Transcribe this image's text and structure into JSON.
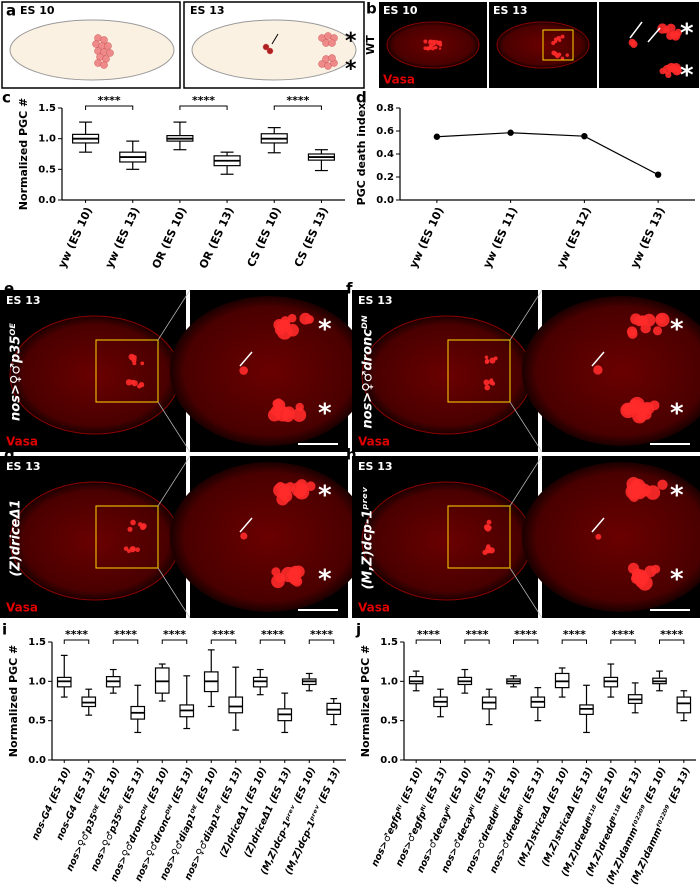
{
  "panels": {
    "a": {
      "label": "a",
      "stages": [
        "ES 10",
        "ES 13"
      ],
      "asterisk": "*"
    },
    "b": {
      "label": "b",
      "genotype": "WT",
      "stages": [
        "ES 10",
        "ES 13"
      ],
      "stain": "Vasa",
      "asterisk": "*"
    },
    "e": {
      "label": "e",
      "stage": "ES 13",
      "genotype": "nos>♀♂p35ᴼᴱ",
      "stain": "Vasa",
      "asterisk": "*"
    },
    "f": {
      "label": "f",
      "stage": "ES 13",
      "genotype": "nos>♀♂droncᴰᴺ",
      "stain": "Vasa",
      "asterisk": "*"
    },
    "g": {
      "label": "g",
      "stage": "ES 13",
      "genotype": "(Z)driceΔ1",
      "stain": "Vasa",
      "asterisk": "*"
    },
    "h": {
      "label": "h",
      "stage": "ES 13",
      "genotype": "(M,Z)dcp-1ᵖʳᵉᵛ",
      "stain": "Vasa",
      "asterisk": "*"
    }
  },
  "chart_data": [
    {
      "type": "box",
      "panel": "c",
      "y_label": "Normalized PGC #",
      "categories": [
        "yw (ES 10)",
        "yw (ES 13)",
        "OR (ES 10)",
        "OR (ES 13)",
        "CS (ES 10)",
        "CS (ES 13)"
      ],
      "boxes": [
        {
          "min": 0.78,
          "q1": 0.93,
          "median": 1.0,
          "q3": 1.07,
          "max": 1.27
        },
        {
          "min": 0.5,
          "q1": 0.62,
          "median": 0.7,
          "q3": 0.78,
          "max": 0.96
        },
        {
          "min": 0.82,
          "q1": 0.96,
          "median": 1.0,
          "q3": 1.05,
          "max": 1.27
        },
        {
          "min": 0.42,
          "q1": 0.56,
          "median": 0.64,
          "q3": 0.72,
          "max": 0.78
        },
        {
          "min": 0.77,
          "q1": 0.93,
          "median": 1.0,
          "q3": 1.08,
          "max": 1.18
        },
        {
          "min": 0.48,
          "q1": 0.65,
          "median": 0.7,
          "q3": 0.75,
          "max": 0.82
        }
      ],
      "significance": [
        "****",
        "****",
        "****"
      ],
      "ylim": [
        0,
        1.5
      ],
      "yticks": [
        {
          "value": 0,
          "label": "0.0"
        },
        0.5,
        {
          "value": 1,
          "label": "1.0"
        },
        1.5
      ]
    },
    {
      "type": "line",
      "panel": "d",
      "y_label": "PGC death index",
      "categories": [
        "yw (ES 10)",
        "yw (ES 11)",
        "yw (ES 12)",
        "yw (ES 13)"
      ],
      "values": [
        0.55,
        0.585,
        0.555,
        0.22
      ],
      "color": "#000000",
      "ylim": [
        0,
        0.8
      ],
      "yticks": [
        {
          "value": 0,
          "label": "0.0"
        },
        0.2,
        0.4,
        0.6,
        0.8
      ]
    },
    {
      "type": "box",
      "panel": "i",
      "y_label": "Normalized PGC #",
      "categories": [
        "nos-G4 (ES 10)",
        "nos-G4 (ES 13)",
        "nos>♀♂p35ᴼᴱ (ES 10)",
        "nos>♀♂p35ᴼᴱ (ES 13)",
        "nos>♀♂droncᴰᴺ (ES 10)",
        "nos>♀♂droncᴰᴺ (ES 13)",
        "nos>♀♂diap1ᴼᴱ (ES 10)",
        "nos>♀♂diap1ᴼᴱ (ES 13)",
        "(Z)driceΔ1 (ES 10)",
        "(Z)driceΔ1 (ES 13)",
        "(M,Z)dcp-1ᵖʳᵉᵛ (ES 10)",
        "(M,Z)dcp-1ᵖʳᵉᵛ (ES 13)"
      ],
      "boxes": [
        {
          "min": 0.8,
          "q1": 0.93,
          "median": 1.0,
          "q3": 1.05,
          "max": 1.33
        },
        {
          "min": 0.57,
          "q1": 0.68,
          "median": 0.73,
          "q3": 0.8,
          "max": 0.9
        },
        {
          "min": 0.85,
          "q1": 0.93,
          "median": 1.0,
          "q3": 1.06,
          "max": 1.15
        },
        {
          "min": 0.35,
          "q1": 0.52,
          "median": 0.6,
          "q3": 0.68,
          "max": 0.95
        },
        {
          "min": 0.75,
          "q1": 0.85,
          "median": 1.0,
          "q3": 1.17,
          "max": 1.22
        },
        {
          "min": 0.4,
          "q1": 0.55,
          "median": 0.63,
          "q3": 0.7,
          "max": 1.07
        },
        {
          "min": 0.68,
          "q1": 0.87,
          "median": 1.0,
          "q3": 1.12,
          "max": 1.4
        },
        {
          "min": 0.38,
          "q1": 0.6,
          "median": 0.68,
          "q3": 0.8,
          "max": 1.18
        },
        {
          "min": 0.83,
          "q1": 0.93,
          "median": 1.0,
          "q3": 1.05,
          "max": 1.15
        },
        {
          "min": 0.35,
          "q1": 0.5,
          "median": 0.58,
          "q3": 0.65,
          "max": 0.85
        },
        {
          "min": 0.88,
          "q1": 0.96,
          "median": 1.0,
          "q3": 1.03,
          "max": 1.1
        },
        {
          "min": 0.45,
          "q1": 0.58,
          "median": 0.64,
          "q3": 0.72,
          "max": 0.78
        }
      ],
      "significance": [
        "****",
        "****",
        "****",
        "****",
        "****",
        "****"
      ],
      "ylim": [
        0,
        1.5
      ],
      "yticks": [
        {
          "value": 0,
          "label": "0.0"
        },
        0.5,
        {
          "value": 1,
          "label": "1.0"
        },
        1.5
      ]
    },
    {
      "type": "box",
      "panel": "j",
      "y_label": "Normalized PGC #",
      "categories": [
        "nos>♂egfpᴿⁱ (ES 10)",
        "nos>♂egfpᴿⁱ (ES 13)",
        "nos>♂decayᴿⁱ (ES 10)",
        "nos>♂decayᴿⁱ (ES 13)",
        "nos>♂dreddᴿⁱ (ES 10)",
        "nos>♂dreddᴿⁱ (ES 13)",
        "(M,Z)stricaΔ (ES 10)",
        "(M,Z)stricaΔ (ES 13)",
        "(M,Z)dreddᴮ¹¹⁸ (ES 10)",
        "(M,Z)dreddᴮ¹¹⁸ (ES 13)",
        "(M,Z)dammᶠ⁰²²⁰⁹ (ES 10)",
        "(M,Z)dammᶠ⁰²²⁰⁹ (ES 13)"
      ],
      "boxes": [
        {
          "min": 0.88,
          "q1": 0.97,
          "median": 1.0,
          "q3": 1.06,
          "max": 1.13
        },
        {
          "min": 0.55,
          "q1": 0.68,
          "median": 0.74,
          "q3": 0.8,
          "max": 0.9
        },
        {
          "min": 0.85,
          "q1": 0.96,
          "median": 1.0,
          "q3": 1.05,
          "max": 1.15
        },
        {
          "min": 0.45,
          "q1": 0.65,
          "median": 0.73,
          "q3": 0.8,
          "max": 0.9
        },
        {
          "min": 0.93,
          "q1": 0.97,
          "median": 1.0,
          "q3": 1.03,
          "max": 1.07
        },
        {
          "min": 0.5,
          "q1": 0.67,
          "median": 0.74,
          "q3": 0.8,
          "max": 0.92
        },
        {
          "min": 0.8,
          "q1": 0.92,
          "median": 1.0,
          "q3": 1.1,
          "max": 1.17
        },
        {
          "min": 0.35,
          "q1": 0.58,
          "median": 0.65,
          "q3": 0.7,
          "max": 0.95
        },
        {
          "min": 0.8,
          "q1": 0.93,
          "median": 1.0,
          "q3": 1.05,
          "max": 1.22
        },
        {
          "min": 0.6,
          "q1": 0.72,
          "median": 0.77,
          "q3": 0.83,
          "max": 0.98
        },
        {
          "min": 0.88,
          "q1": 0.97,
          "median": 1.0,
          "q3": 1.04,
          "max": 1.13
        },
        {
          "min": 0.5,
          "q1": 0.6,
          "median": 0.72,
          "q3": 0.8,
          "max": 0.88
        }
      ],
      "significance": [
        "****",
        "****",
        "****",
        "****",
        "****",
        "****"
      ],
      "ylim": [
        0,
        1.5
      ],
      "yticks": [
        {
          "value": 0,
          "label": "0.0"
        },
        0.5,
        {
          "value": 1,
          "label": "1.0"
        },
        1.5
      ]
    }
  ]
}
